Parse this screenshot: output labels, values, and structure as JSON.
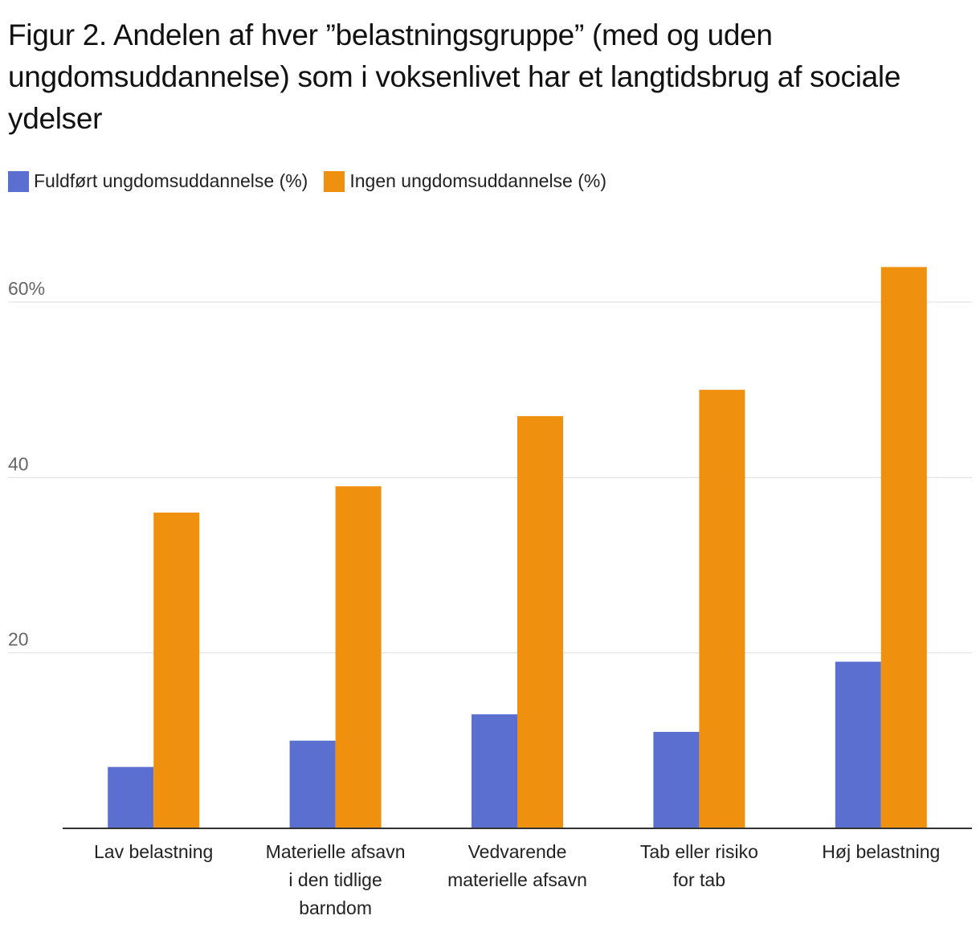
{
  "title": "Figur 2. Andelen af hver ”belastningsgruppe” (med og uden ungdomsuddannelse) som i voksenlivet har et langtidsbrug af sociale ydelser",
  "colors": {
    "series1": "#5b6fd1",
    "series2": "#f0900f",
    "grid": "#dddddd",
    "axis": "#333333"
  },
  "legend": [
    {
      "label": "Fuldført ungdomsuddannelse (%)",
      "color": "#5b6fd1"
    },
    {
      "label": "Ingen ungdomsuddannelse (%)",
      "color": "#f0900f"
    }
  ],
  "chart_data": {
    "type": "bar",
    "title": "Figur 2. Andelen af hver ”belastningsgruppe” (med og uden ungdomsuddannelse) som i voksenlivet har et langtidsbrug af sociale ydelser",
    "categories": [
      [
        "Lav belastning"
      ],
      [
        "Materielle afsavn",
        "i den tidlige",
        "barndom"
      ],
      [
        "Vedvarende",
        "materielle afsavn"
      ],
      [
        "Tab eller risiko",
        "for tab"
      ],
      [
        "Høj belastning"
      ]
    ],
    "series": [
      {
        "name": "Fuldført ungdomsuddannelse (%)",
        "values": [
          7,
          10,
          13,
          11,
          19
        ]
      },
      {
        "name": "Ingen ungdomsuddannelse (%)",
        "values": [
          36,
          39,
          47,
          50,
          64
        ]
      }
    ],
    "yticks": [
      {
        "value": 20,
        "label": "20"
      },
      {
        "value": 40,
        "label": "40"
      },
      {
        "value": 60,
        "label": "60%"
      }
    ],
    "ylim": [
      0,
      67
    ],
    "xlabel": "",
    "ylabel": "",
    "grid": true,
    "legend_position": "top-left"
  }
}
